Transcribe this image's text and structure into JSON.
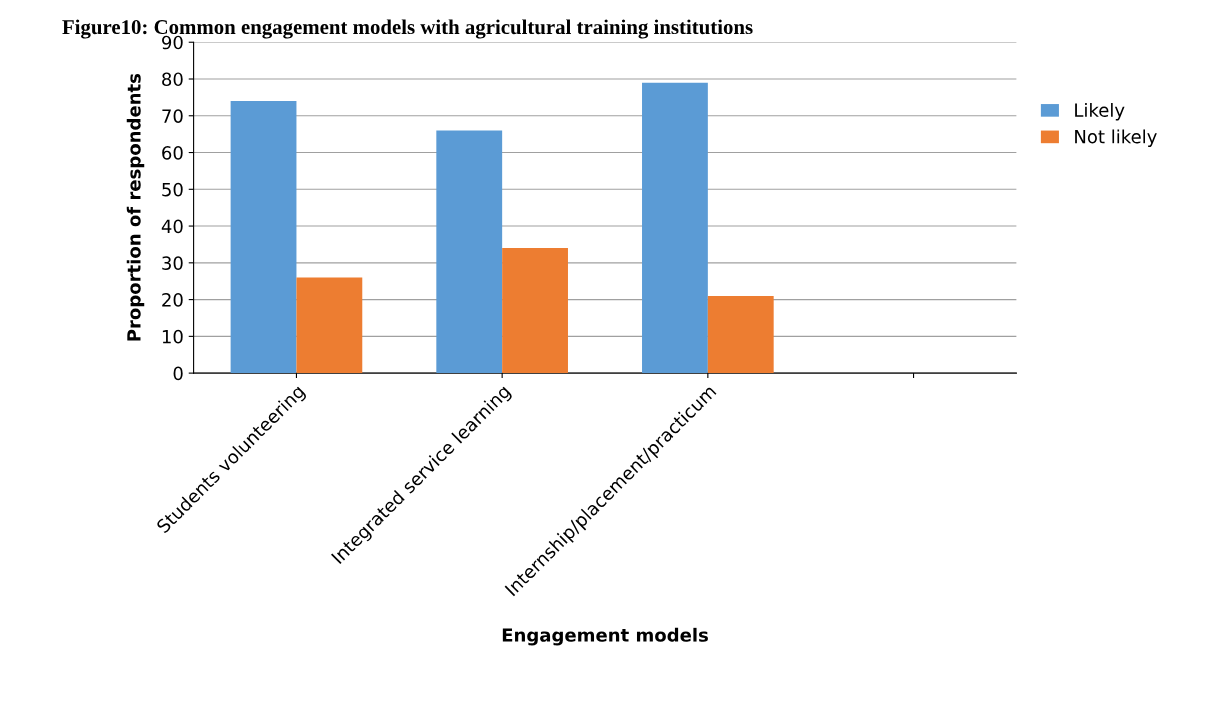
{
  "chart_data": {
    "type": "bar",
    "title": "Figure10: Common engagement models with agricultural training institutions",
    "xlabel": "Engagement models",
    "ylabel": "Proportion of respondents",
    "categories": [
      "Students volunteering",
      "Integrated service learning",
      "Internship/placement/practicum",
      null
    ],
    "series": [
      {
        "name": "Likely",
        "color": "#5b9bd5",
        "values": [
          74,
          66,
          79,
          null
        ]
      },
      {
        "name": "Not likely",
        "color": "#ed7d31",
        "values": [
          26,
          34,
          21,
          null
        ]
      }
    ],
    "ylim": [
      0,
      90
    ],
    "yticks": [
      0,
      10,
      20,
      30,
      40,
      50,
      60,
      70,
      80,
      90
    ],
    "grid": "y",
    "legend": "right"
  }
}
